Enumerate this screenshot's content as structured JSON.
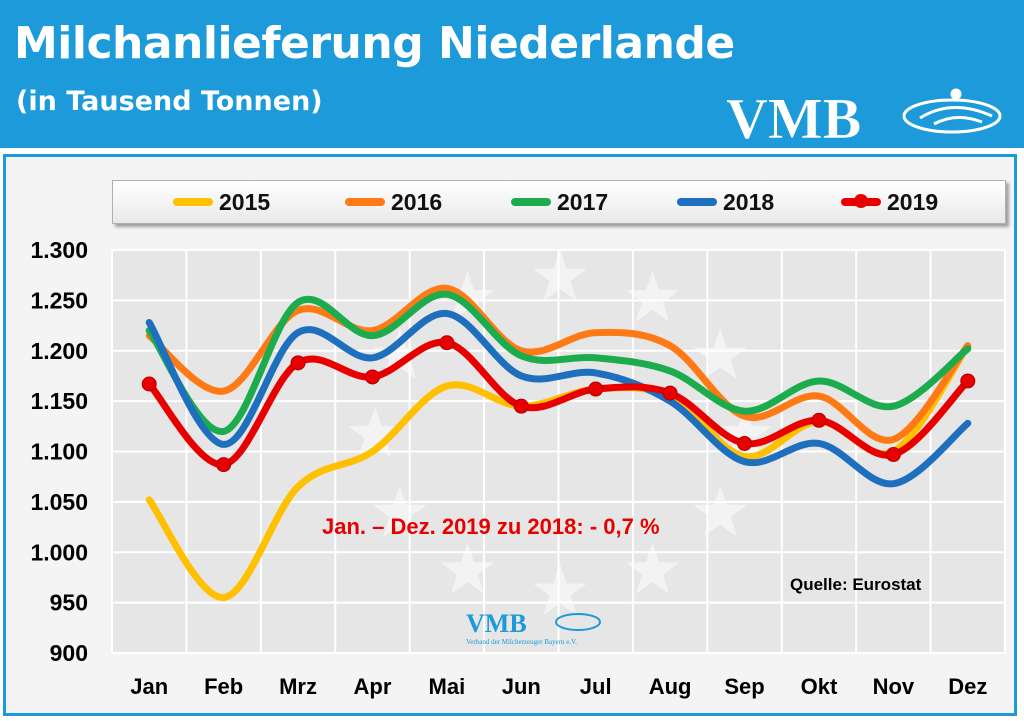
{
  "header": {
    "title": "Milchanlieferung Niederlande",
    "subtitle": "(in Tausend Tonnen)",
    "logo_text": "VMB"
  },
  "colors": {
    "header_bg": "#1d9ad9",
    "plot_bg": "#e6e6e6"
  },
  "chart_data": {
    "type": "line",
    "categories": [
      "Jan",
      "Feb",
      "Mrz",
      "Apr",
      "Mai",
      "Jun",
      "Jul",
      "Aug",
      "Sep",
      "Okt",
      "Nov",
      "Dez"
    ],
    "ylim": [
      900,
      1300
    ],
    "yticks": [
      900,
      950,
      1000,
      1050,
      1100,
      1150,
      1200,
      1250,
      1300
    ],
    "ytick_labels": [
      "900",
      "950",
      "1.000",
      "1.050",
      "1.100",
      "1.150",
      "1.200",
      "1.250",
      "1.300"
    ],
    "grid": true,
    "legend_position": "top",
    "series": [
      {
        "name": "2015",
        "color": "#ffc000",
        "markers": false,
        "values": [
          1052,
          955,
          1065,
          1100,
          1165,
          1145,
          1162,
          1155,
          1095,
          1130,
          1100,
          1205
        ]
      },
      {
        "name": "2016",
        "color": "#ff7a14",
        "markers": false,
        "values": [
          1215,
          1160,
          1240,
          1220,
          1262,
          1200,
          1218,
          1205,
          1135,
          1155,
          1112,
          1205
        ]
      },
      {
        "name": "2017",
        "color": "#1cac4e",
        "markers": false,
        "values": [
          1220,
          1120,
          1248,
          1215,
          1256,
          1195,
          1193,
          1180,
          1140,
          1170,
          1145,
          1202
        ]
      },
      {
        "name": "2018",
        "color": "#1e6fbe",
        "markers": false,
        "values": [
          1228,
          1107,
          1218,
          1193,
          1237,
          1175,
          1178,
          1150,
          1090,
          1108,
          1068,
          1128
        ]
      },
      {
        "name": "2019",
        "color": "#e80000",
        "markers": true,
        "values": [
          1167,
          1087,
          1188,
          1174,
          1208,
          1145,
          1162,
          1158,
          1108,
          1131,
          1097,
          1170
        ]
      }
    ],
    "annotations": [
      {
        "text": "Jan. – Dez. 2019 zu 2018: - 0,7 %",
        "color": "#e80000"
      },
      {
        "text": "Quelle: Eurostat",
        "color": "#000000"
      }
    ],
    "watermark": {
      "logo_text": "VMB",
      "tagline": "Verband der Milcherzeuger Bayern e.V."
    }
  }
}
